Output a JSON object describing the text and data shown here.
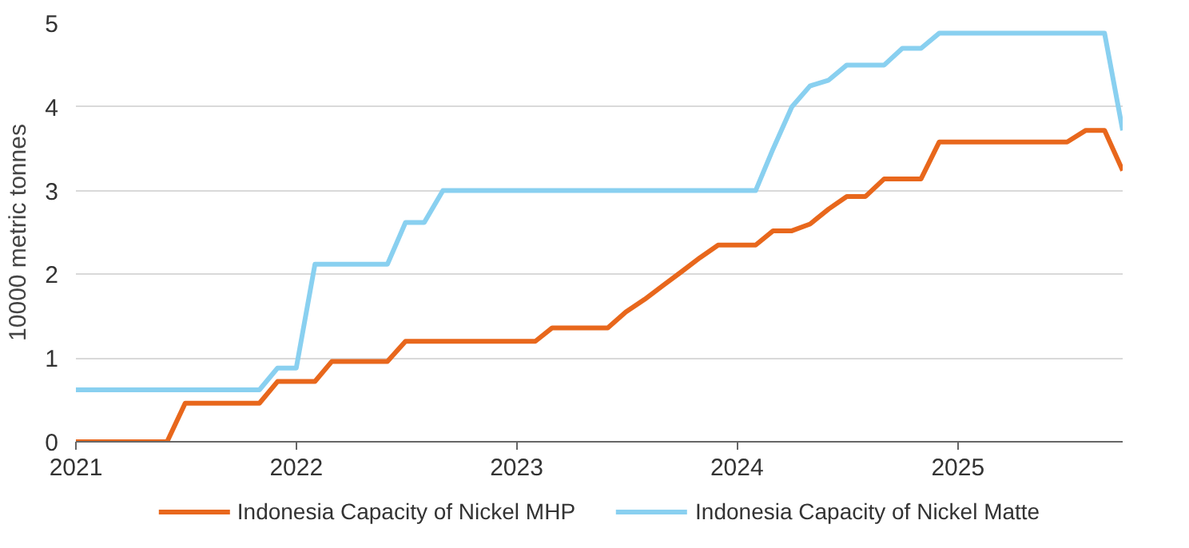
{
  "chart_data": {
    "type": "line",
    "ylabel": "10000 metric tonnes",
    "x": [
      "2021-01",
      "2021-02",
      "2021-03",
      "2021-04",
      "2021-05",
      "2021-06",
      "2021-07",
      "2021-08",
      "2021-09",
      "2021-10",
      "2021-11",
      "2021-12",
      "2022-01",
      "2022-02",
      "2022-03",
      "2022-04",
      "2022-05",
      "2022-06",
      "2022-07",
      "2022-08",
      "2022-09",
      "2022-10",
      "2022-11",
      "2022-12",
      "2023-01",
      "2023-02",
      "2023-03",
      "2023-04",
      "2023-05",
      "2023-06",
      "2023-07",
      "2023-08",
      "2023-09",
      "2023-10",
      "2023-11",
      "2023-12",
      "2024-01",
      "2024-02",
      "2024-03",
      "2024-04",
      "2024-05",
      "2024-06",
      "2024-07",
      "2024-08",
      "2024-09",
      "2024-10",
      "2024-11",
      "2024-12",
      "2025-01",
      "2025-02",
      "2025-03",
      "2025-04",
      "2025-05",
      "2025-06",
      "2025-07",
      "2025-08",
      "2025-09",
      "2025-10"
    ],
    "series": [
      {
        "name": "Indonesia Capacity of Nickel MHP",
        "color": "#e8671c",
        "values": [
          0,
          0,
          0,
          0,
          0,
          0,
          0.46,
          0.46,
          0.46,
          0.46,
          0.46,
          0.72,
          0.72,
          0.72,
          0.96,
          0.96,
          0.96,
          0.96,
          1.2,
          1.2,
          1.2,
          1.2,
          1.2,
          1.2,
          1.2,
          1.2,
          1.36,
          1.36,
          1.36,
          1.36,
          1.55,
          1.7,
          1.87,
          2.03,
          2.2,
          2.35,
          2.35,
          2.35,
          2.52,
          2.52,
          2.6,
          2.78,
          2.93,
          2.93,
          3.14,
          3.14,
          3.14,
          3.58,
          3.58,
          3.58,
          3.58,
          3.58,
          3.58,
          3.58,
          3.58,
          3.72,
          3.72,
          3.24
        ]
      },
      {
        "name": "Indonesia Capacity of Nickel Matte",
        "color": "#89d0f0",
        "values": [
          0.62,
          0.62,
          0.62,
          0.62,
          0.62,
          0.62,
          0.62,
          0.62,
          0.62,
          0.62,
          0.62,
          0.88,
          0.88,
          2.12,
          2.12,
          2.12,
          2.12,
          2.12,
          2.62,
          2.62,
          3.0,
          3.0,
          3.0,
          3.0,
          3.0,
          3.0,
          3.0,
          3.0,
          3.0,
          3.0,
          3.0,
          3.0,
          3.0,
          3.0,
          3.0,
          3.0,
          3.0,
          3.0,
          3.5,
          4.0,
          4.25,
          4.32,
          4.5,
          4.5,
          4.5,
          4.7,
          4.7,
          4.88,
          4.88,
          4.88,
          4.88,
          4.88,
          4.88,
          4.88,
          4.88,
          4.88,
          4.88,
          3.72
        ]
      }
    ],
    "xlim": [
      "2021-01",
      "2025-10"
    ],
    "xticks": [
      "2021",
      "2022",
      "2023",
      "2024",
      "2025"
    ],
    "ylim": [
      0,
      5
    ],
    "yticks": [
      0,
      1,
      2,
      3,
      4,
      5
    ],
    "grid": "y",
    "legend": "bottom",
    "line_style": "solid",
    "marker": "none"
  }
}
